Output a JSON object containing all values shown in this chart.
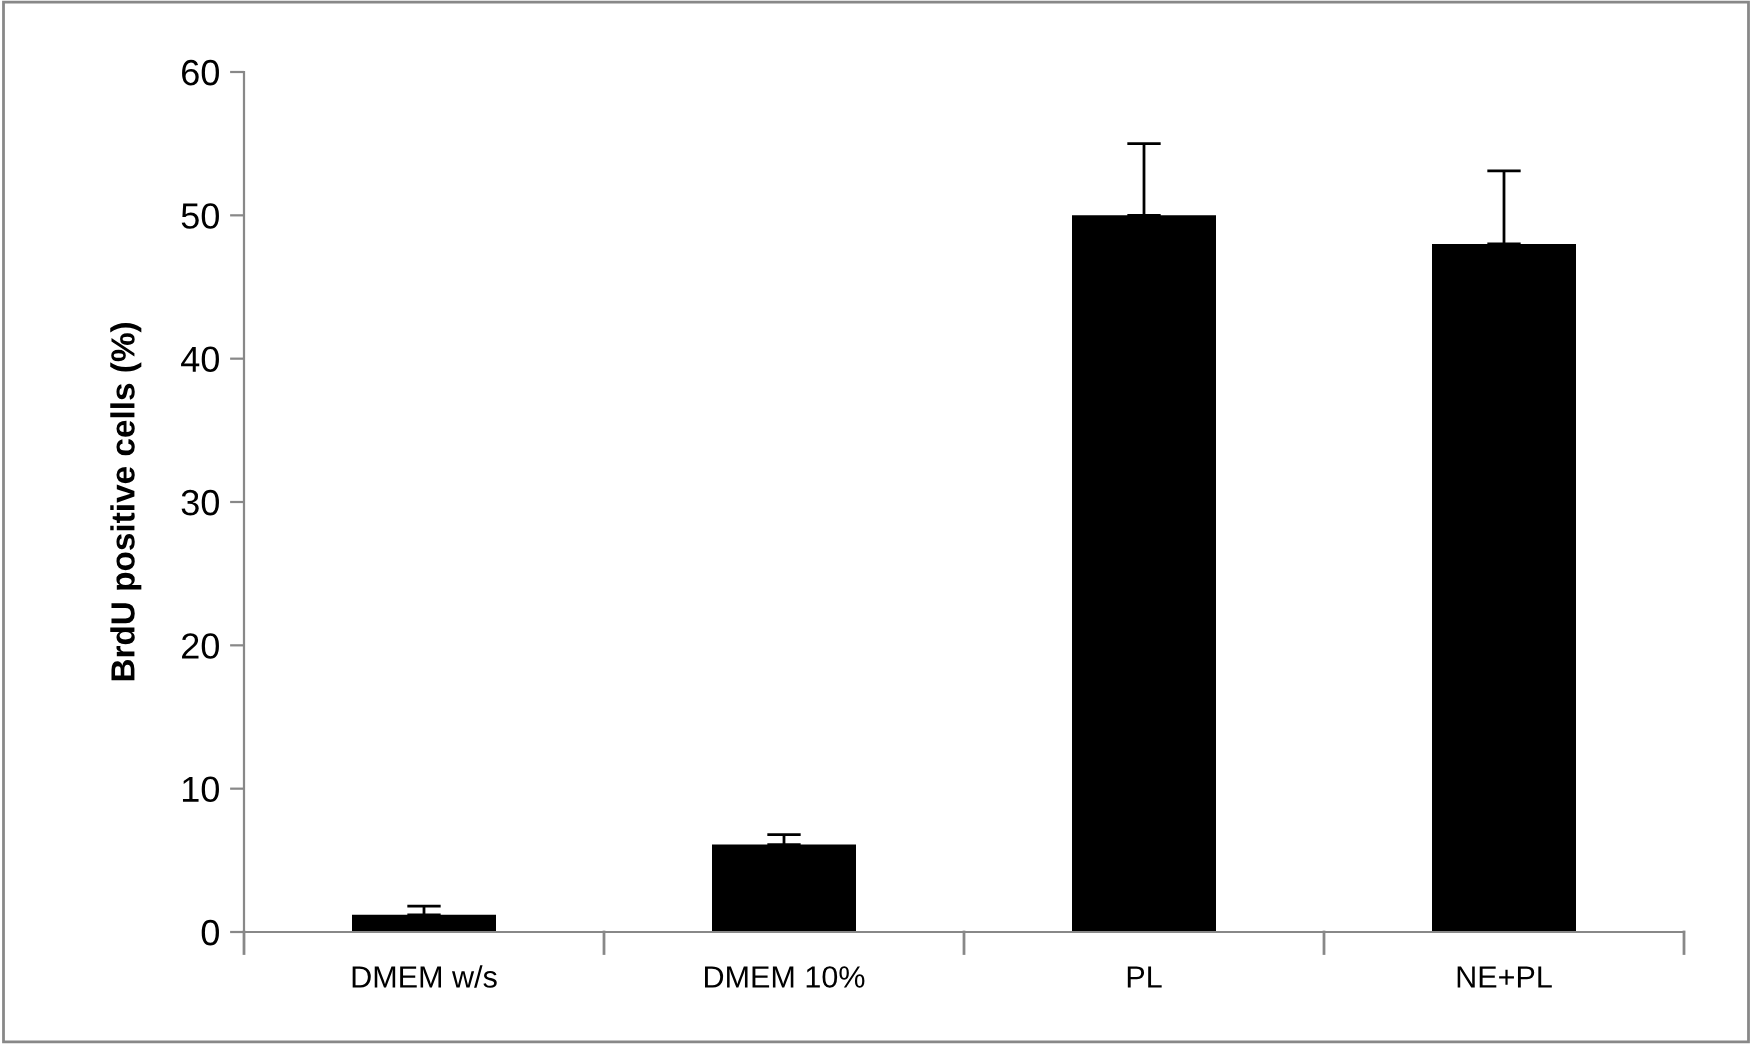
{
  "chart_data": {
    "type": "bar",
    "ylabel": "BrdU positive cells (%)",
    "categories": [
      "DMEM w/s",
      "DMEM 10%",
      "PL",
      "NE+PL"
    ],
    "values": [
      1.2,
      6.1,
      50,
      48
    ],
    "errors": [
      [
        1.2,
        1.8
      ],
      [
        6.1,
        6.8
      ],
      [
        50,
        55
      ],
      [
        48,
        53.1
      ]
    ],
    "color": "#000000",
    "ylim": [
      0,
      60
    ],
    "yticks": [
      0,
      10,
      20,
      30,
      40,
      50,
      60
    ],
    "grid": false
  }
}
